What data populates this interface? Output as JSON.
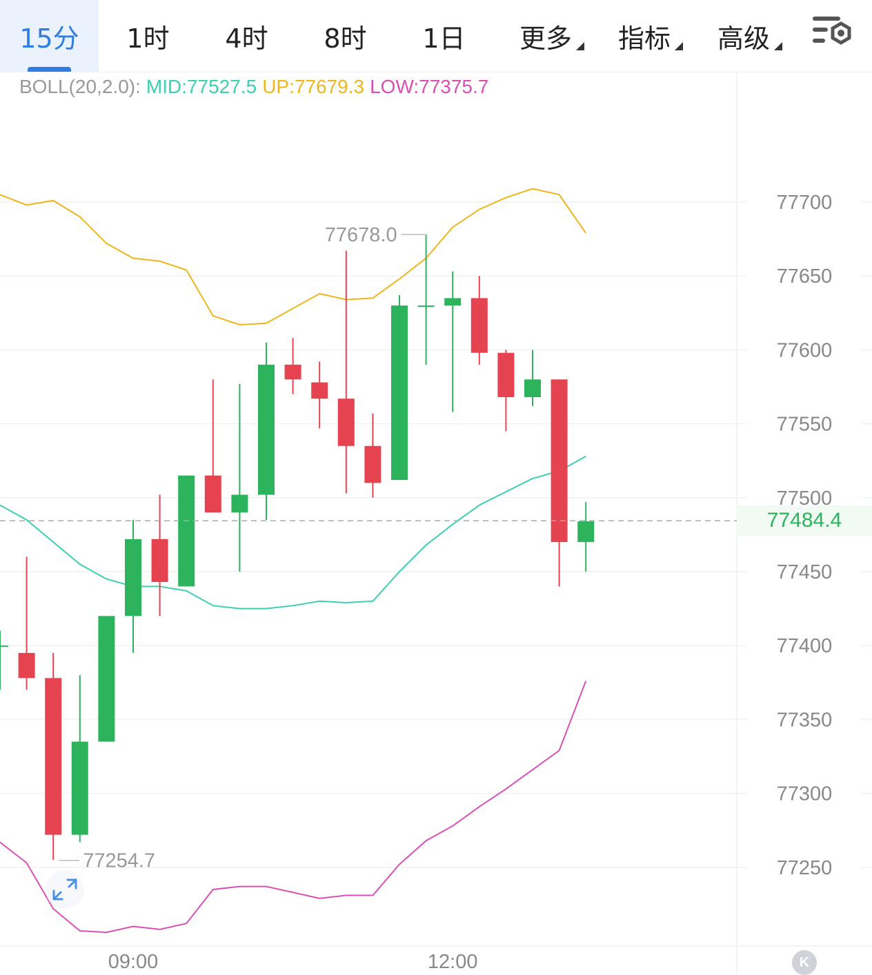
{
  "tabs": [
    {
      "label": "15分",
      "active": true
    },
    {
      "label": "1时"
    },
    {
      "label": "4时"
    },
    {
      "label": "8时"
    },
    {
      "label": "1日"
    },
    {
      "label": "更多",
      "dropdown": true
    },
    {
      "label": "指标",
      "dropdown": true
    },
    {
      "label": "高级",
      "dropdown": true
    }
  ],
  "settings_icon": "chart-settings-icon",
  "indicator": {
    "prefix": "BOLL(20,2.0):",
    "mid": "MID:77527.5",
    "up": "UP:77679.3",
    "low": "LOW:77375.7"
  },
  "colors": {
    "accent": "#2f7de1",
    "up_candle": "#2db35c",
    "down_candle": "#e5434f",
    "mid_line": "#3ccfb0",
    "up_line": "#efb51c",
    "low_line": "#d94fb5"
  },
  "current_price": "77484.4",
  "chart_data": {
    "type": "candlestick",
    "y_ticks": [
      77700,
      77650,
      77600,
      77550,
      77500,
      77450,
      77400,
      77350,
      77300,
      77250
    ],
    "x_ticks": [
      {
        "label": "09:00",
        "index": 5
      },
      {
        "label": "12:00",
        "index": 17
      }
    ],
    "high_annotation": {
      "label": "77678.0",
      "index": 16,
      "value": 77678.0
    },
    "low_annotation": {
      "label": "77254.7",
      "index": 2,
      "value": 77254.7
    },
    "candles": [
      {
        "o": 77400,
        "h": 77410,
        "l": 77370,
        "c": 77400
      },
      {
        "o": 77395,
        "h": 77460,
        "l": 77370,
        "c": 77378
      },
      {
        "o": 77378,
        "h": 77395,
        "l": 77255,
        "c": 77272
      },
      {
        "o": 77272,
        "h": 77380,
        "l": 77267,
        "c": 77335
      },
      {
        "o": 77335,
        "h": 77420,
        "l": 77335,
        "c": 77420
      },
      {
        "o": 77420,
        "h": 77485,
        "l": 77395,
        "c": 77472
      },
      {
        "o": 77472,
        "h": 77502,
        "l": 77420,
        "c": 77443
      },
      {
        "o": 77440,
        "h": 77515,
        "l": 77440,
        "c": 77515
      },
      {
        "o": 77515,
        "h": 77580,
        "l": 77490,
        "c": 77490
      },
      {
        "o": 77490,
        "h": 77577,
        "l": 77450,
        "c": 77502
      },
      {
        "o": 77502,
        "h": 77605,
        "l": 77485,
        "c": 77590
      },
      {
        "o": 77590,
        "h": 77608,
        "l": 77570,
        "c": 77580
      },
      {
        "o": 77578,
        "h": 77592,
        "l": 77547,
        "c": 77567
      },
      {
        "o": 77567,
        "h": 77667,
        "l": 77503,
        "c": 77535
      },
      {
        "o": 77535,
        "h": 77557,
        "l": 77500,
        "c": 77510
      },
      {
        "o": 77512,
        "h": 77637,
        "l": 77512,
        "c": 77630
      },
      {
        "o": 77630,
        "h": 77678,
        "l": 77590,
        "c": 77630
      },
      {
        "o": 77630,
        "h": 77653,
        "l": 77558,
        "c": 77635
      },
      {
        "o": 77635,
        "h": 77650,
        "l": 77590,
        "c": 77598
      },
      {
        "o": 77598,
        "h": 77600,
        "l": 77545,
        "c": 77568
      },
      {
        "o": 77568,
        "h": 77600,
        "l": 77562,
        "c": 77580
      },
      {
        "o": 77580,
        "h": 77580,
        "l": 77440,
        "c": 77470
      },
      {
        "o": 77470,
        "h": 77497,
        "l": 77450,
        "c": 77484
      }
    ],
    "series": [
      {
        "name": "MID",
        "values": [
          77495,
          77485,
          77470,
          77455,
          77445,
          77440,
          77440,
          77437,
          77427,
          77425,
          77425,
          77427,
          77430,
          77429,
          77430,
          77450,
          77468,
          77482,
          77495,
          77504,
          77513,
          77518,
          77528
        ]
      },
      {
        "name": "UP",
        "values": [
          77705,
          77698,
          77701,
          77690,
          77672,
          77662,
          77660,
          77654,
          77623,
          77617,
          77618,
          77628,
          77638,
          77634,
          77635,
          77648,
          77662,
          77683,
          77695,
          77703,
          77709,
          77705,
          77679
        ]
      },
      {
        "name": "LOW",
        "values": [
          77267,
          77253,
          77222,
          77207,
          77206,
          77210,
          77208,
          77212,
          77235,
          77237,
          77237,
          77233,
          77229,
          77231,
          77231,
          77252,
          77268,
          77278,
          77291,
          77303,
          77316,
          77329,
          77376
        ]
      }
    ]
  }
}
